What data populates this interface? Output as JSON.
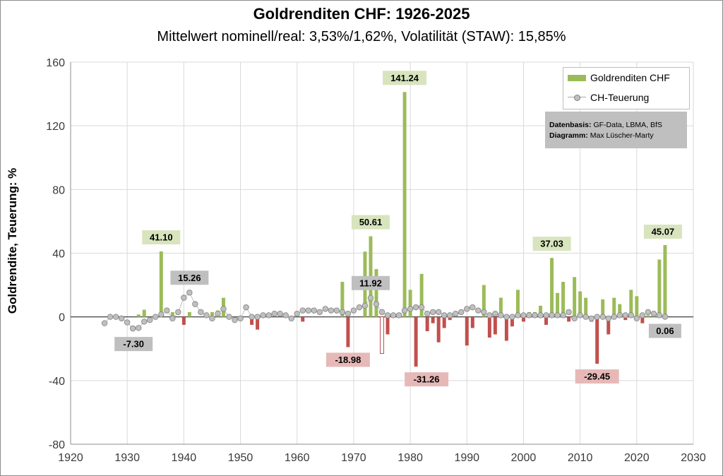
{
  "chart_data": {
    "type": "bar+line",
    "title": "Goldrenditen CHF: 1926-2025",
    "subtitle": "Mittelwert nominell/real: 3,53%/1,62%, Volatilität (STAW): 15,85%",
    "ylabel": "Goldrendite, Teuerung: %",
    "xlabel": "",
    "xlim": [
      1920,
      2030
    ],
    "ylim": [
      -80,
      160
    ],
    "xticks": [
      "1920",
      "1930",
      "1940",
      "1950",
      "1960",
      "1970",
      "1980",
      "1990",
      "2000",
      "2010",
      "2020",
      "2030"
    ],
    "yticks": [
      "160",
      "120",
      "80",
      "40",
      "0",
      "-40",
      "-80"
    ],
    "legend": [
      {
        "name": "Goldrenditen CHF",
        "color": "#9bbb59"
      },
      {
        "name": "CH-Teuerung",
        "color": "#a6a6a6"
      }
    ],
    "colors": {
      "positive": "#9bbb59",
      "negative": "#c0504d",
      "inflation_marker": "#a6a6a6",
      "callout_positive": "#d7e4bd",
      "callout_negative": "#e6b9b8",
      "callout_inflation": "#bfbfbf"
    },
    "gold_series": {
      "name": "Goldrenditen CHF",
      "x": [
        1926,
        1927,
        1928,
        1929,
        1930,
        1931,
        1932,
        1933,
        1934,
        1935,
        1936,
        1937,
        1938,
        1939,
        1940,
        1941,
        1942,
        1943,
        1944,
        1945,
        1946,
        1947,
        1948,
        1949,
        1950,
        1951,
        1952,
        1953,
        1954,
        1955,
        1956,
        1957,
        1958,
        1959,
        1960,
        1961,
        1962,
        1963,
        1964,
        1965,
        1966,
        1967,
        1968,
        1969,
        1970,
        1971,
        1972,
        1973,
        1974,
        1975,
        1976,
        1977,
        1978,
        1979,
        1980,
        1981,
        1982,
        1983,
        1984,
        1985,
        1986,
        1987,
        1988,
        1989,
        1990,
        1991,
        1992,
        1993,
        1994,
        1995,
        1996,
        1997,
        1998,
        1999,
        2000,
        2001,
        2002,
        2003,
        2004,
        2005,
        2006,
        2007,
        2008,
        2009,
        2010,
        2011,
        2012,
        2013,
        2014,
        2015,
        2016,
        2017,
        2018,
        2019,
        2020,
        2021,
        2022,
        2023,
        2024,
        2025
      ],
      "values": [
        0,
        0,
        0,
        0,
        0,
        0,
        1.5,
        4.5,
        0,
        0,
        41.1,
        0,
        3,
        0,
        -5,
        3,
        0,
        0,
        0,
        3,
        4,
        12,
        0,
        0,
        0,
        0,
        -5,
        -8,
        0,
        0,
        0,
        0,
        0,
        0,
        0,
        -3,
        0,
        0,
        0,
        0,
        0,
        0,
        22,
        -19,
        0,
        0,
        41,
        50.61,
        30,
        -23,
        -11,
        0,
        0,
        141.24,
        17,
        -31.26,
        27,
        -9,
        -4,
        -16,
        -7,
        -2,
        0,
        0,
        -18,
        -7,
        0,
        20,
        -13,
        -11,
        12,
        -15,
        -6,
        17,
        -3,
        3,
        3,
        7,
        -5,
        37.03,
        15,
        22,
        -3,
        25,
        16,
        12,
        -3,
        -29.45,
        11,
        -11,
        12,
        8,
        -2,
        17,
        13,
        -4,
        1,
        3,
        36,
        45.07
      ],
      "hollow_years": [
        1975
      ]
    },
    "inflation_series": {
      "name": "CH-Teuerung",
      "x": [
        1926,
        1927,
        1928,
        1929,
        1930,
        1931,
        1932,
        1933,
        1934,
        1935,
        1936,
        1937,
        1938,
        1939,
        1940,
        1941,
        1942,
        1943,
        1944,
        1945,
        1946,
        1947,
        1948,
        1949,
        1950,
        1951,
        1952,
        1953,
        1954,
        1955,
        1956,
        1957,
        1958,
        1959,
        1960,
        1961,
        1962,
        1963,
        1964,
        1965,
        1966,
        1967,
        1968,
        1969,
        1970,
        1971,
        1972,
        1973,
        1974,
        1975,
        1976,
        1977,
        1978,
        1979,
        1980,
        1981,
        1982,
        1983,
        1984,
        1985,
        1986,
        1987,
        1988,
        1989,
        1990,
        1991,
        1992,
        1993,
        1994,
        1995,
        1996,
        1997,
        1998,
        1999,
        2000,
        2001,
        2002,
        2003,
        2004,
        2005,
        2006,
        2007,
        2008,
        2009,
        2010,
        2011,
        2012,
        2013,
        2014,
        2015,
        2016,
        2017,
        2018,
        2019,
        2020,
        2021,
        2022,
        2023,
        2024,
        2025
      ],
      "values": [
        -4,
        0,
        0,
        -1,
        -3.5,
        -7.3,
        -7,
        -3,
        -2,
        0,
        1.5,
        4,
        -1,
        3,
        12,
        15.26,
        8,
        3,
        1,
        -1,
        2,
        5,
        0,
        -2,
        -1,
        6,
        0,
        0,
        1,
        1,
        2,
        2,
        1,
        -1,
        2,
        4,
        4,
        4,
        3,
        5,
        4,
        4,
        3,
        2,
        4,
        6,
        7,
        11.92,
        8,
        3,
        1,
        1,
        1,
        4,
        5,
        6,
        6,
        2,
        3,
        3,
        1,
        1,
        2,
        3,
        5,
        6,
        4,
        3,
        1,
        2,
        1,
        0,
        0,
        1,
        1,
        1,
        1,
        1,
        1,
        1,
        1,
        1,
        3,
        -1,
        1,
        0,
        -1,
        0,
        0,
        -1,
        0,
        1,
        1,
        1,
        -1,
        1,
        3,
        2,
        1,
        0.06
      ]
    },
    "annotations": [
      {
        "label": "41.10",
        "series": "gold",
        "x": 1936,
        "value": 41.1,
        "kind": "positive"
      },
      {
        "label": "50.61",
        "series": "gold",
        "x": 1973,
        "value": 50.61,
        "kind": "positive"
      },
      {
        "label": "141.24",
        "series": "gold",
        "x": 1979,
        "value": 141.24,
        "kind": "positive"
      },
      {
        "label": "37.03",
        "series": "gold",
        "x": 2005,
        "value": 37.03,
        "kind": "positive"
      },
      {
        "label": "45.07",
        "series": "gold",
        "x": 2025,
        "value": 45.07,
        "kind": "positive"
      },
      {
        "label": "-18.98",
        "series": "gold",
        "x": 1969,
        "value": -18.98,
        "kind": "negative"
      },
      {
        "label": "-31.26",
        "series": "gold",
        "x": 1981,
        "value": -31.26,
        "kind": "negative"
      },
      {
        "label": "-29.45",
        "series": "gold",
        "x": 2013,
        "value": -29.45,
        "kind": "negative"
      },
      {
        "label": "-7.30",
        "series": "inflation",
        "x": 1931,
        "value": -7.3,
        "kind": "inflation"
      },
      {
        "label": "15.26",
        "series": "inflation",
        "x": 1941,
        "value": 15.26,
        "kind": "inflation"
      },
      {
        "label": "11.92",
        "series": "inflation",
        "x": 1973,
        "value": 11.92,
        "kind": "inflation"
      },
      {
        "label": "0.06",
        "series": "inflation",
        "x": 2025,
        "value": 0.06,
        "kind": "inflation"
      }
    ],
    "source_box": {
      "data_label": "Datenbasis:",
      "data_value": "GF-Data, LBMA, BfS",
      "diagram_label": "Diagramm:",
      "diagram_value": "Max Lüscher-Marty"
    }
  }
}
